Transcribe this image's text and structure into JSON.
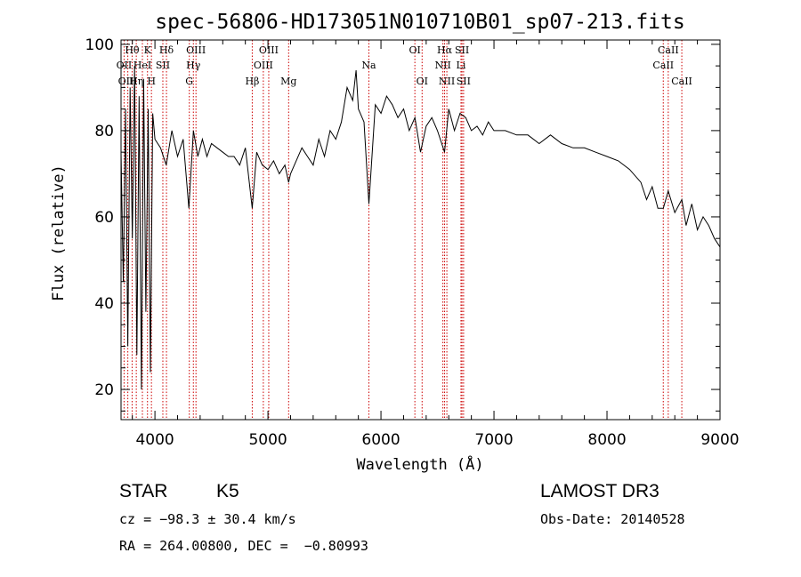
{
  "chart_data": {
    "type": "line",
    "title": "spec-56806-HD173051N010710B01_sp07-213.fits",
    "xlabel": "Wavelength (Å)",
    "ylabel": "Flux (relative)",
    "xlim": [
      3700,
      9000
    ],
    "ylim": [
      13,
      101
    ],
    "xticks": [
      4000,
      5000,
      6000,
      7000,
      8000,
      9000
    ],
    "yticks": [
      20,
      40,
      60,
      80,
      100
    ],
    "grid": false,
    "line_color": "#000000",
    "marker_color": "#cc0000",
    "series": [
      {
        "name": "flux",
        "x": [
          3700,
          3720,
          3740,
          3760,
          3780,
          3800,
          3820,
          3840,
          3860,
          3880,
          3900,
          3920,
          3940,
          3960,
          3980,
          4000,
          4050,
          4100,
          4150,
          4200,
          4250,
          4300,
          4340,
          4380,
          4420,
          4460,
          4500,
          4550,
          4600,
          4650,
          4700,
          4750,
          4800,
          4861,
          4900,
          4950,
          5000,
          5050,
          5100,
          5150,
          5183,
          5200,
          5250,
          5300,
          5350,
          5400,
          5450,
          5500,
          5550,
          5600,
          5650,
          5700,
          5750,
          5780,
          5800,
          5850,
          5893,
          5950,
          6000,
          6050,
          6100,
          6150,
          6200,
          6250,
          6300,
          6350,
          6400,
          6450,
          6500,
          6563,
          6600,
          6650,
          6700,
          6750,
          6800,
          6850,
          6900,
          6950,
          7000,
          7100,
          7200,
          7300,
          7400,
          7500,
          7600,
          7700,
          7800,
          7900,
          8000,
          8100,
          8200,
          8300,
          8350,
          8400,
          8450,
          8498,
          8542,
          8600,
          8662,
          8700,
          8750,
          8800,
          8850,
          8900,
          8950,
          9000
        ],
        "y": [
          75,
          45,
          85,
          30,
          90,
          55,
          95,
          28,
          88,
          20,
          92,
          38,
          85,
          24,
          84,
          78,
          76,
          72,
          80,
          74,
          78,
          62,
          80,
          74,
          78,
          74,
          77,
          76,
          75,
          74,
          74,
          72,
          76,
          62,
          75,
          72,
          71,
          73,
          70,
          72,
          68,
          70,
          73,
          76,
          74,
          72,
          78,
          74,
          80,
          78,
          82,
          90,
          87,
          94,
          85,
          82,
          63,
          86,
          84,
          88,
          86,
          83,
          85,
          80,
          83,
          75,
          81,
          83,
          80,
          75,
          85,
          80,
          84,
          83,
          80,
          81,
          79,
          82,
          80,
          80,
          79,
          79,
          77,
          79,
          77,
          76,
          76,
          75,
          74,
          73,
          71,
          68,
          64,
          67,
          62,
          62,
          66,
          61,
          64,
          58,
          63,
          57,
          60,
          58,
          55,
          53
        ]
      }
    ],
    "lines": [
      {
        "name": "OII",
        "x": 3727,
        "row": 1
      },
      {
        "name": "Hθ",
        "x": 3798,
        "row": 0
      },
      {
        "name": "OIII",
        "x": 3760,
        "row": 2
      },
      {
        "name": "Hη",
        "x": 3835,
        "row": 2
      },
      {
        "name": "HeI",
        "x": 3889,
        "row": 1
      },
      {
        "name": "K",
        "x": 3934,
        "row": 0
      },
      {
        "name": "SII",
        "x": 4070,
        "row": 1
      },
      {
        "name": "H",
        "x": 3969,
        "row": 2
      },
      {
        "name": "Hδ",
        "x": 4102,
        "row": 0
      },
      {
        "name": "OIII",
        "x": 4363,
        "row": 0
      },
      {
        "name": "Hγ",
        "x": 4340,
        "row": 1
      },
      {
        "name": "G",
        "x": 4304,
        "row": 2
      },
      {
        "name": "Hβ",
        "x": 4861,
        "row": 2
      },
      {
        "name": "OIII",
        "x": 5007,
        "row": 0
      },
      {
        "name": "OIII",
        "x": 4959,
        "row": 1
      },
      {
        "name": "Mg",
        "x": 5183,
        "row": 2
      },
      {
        "name": "Na",
        "x": 5893,
        "row": 1
      },
      {
        "name": "OI",
        "x": 6300,
        "row": 0
      },
      {
        "name": "OI",
        "x": 6364,
        "row": 2
      },
      {
        "name": "Hα",
        "x": 6563,
        "row": 0
      },
      {
        "name": "NII",
        "x": 6548,
        "row": 1
      },
      {
        "name": "NII",
        "x": 6583,
        "row": 2
      },
      {
        "name": "SII",
        "x": 6717,
        "row": 0
      },
      {
        "name": "Li",
        "x": 6708,
        "row": 1
      },
      {
        "name": "SII",
        "x": 6731,
        "row": 2
      },
      {
        "name": "CaII",
        "x": 8542,
        "row": 0
      },
      {
        "name": "CaII",
        "x": 8498,
        "row": 1
      },
      {
        "name": "CaII",
        "x": 8662,
        "row": 2
      }
    ]
  },
  "info": {
    "object_type": "STAR",
    "subclass": "K5",
    "survey": "LAMOST DR3",
    "cz": "cz = −98.3 ± 30.4 km/s",
    "obs_date": "Obs-Date: 20140528",
    "coords": "RA = 264.00800, DEC =  −0.80993"
  }
}
